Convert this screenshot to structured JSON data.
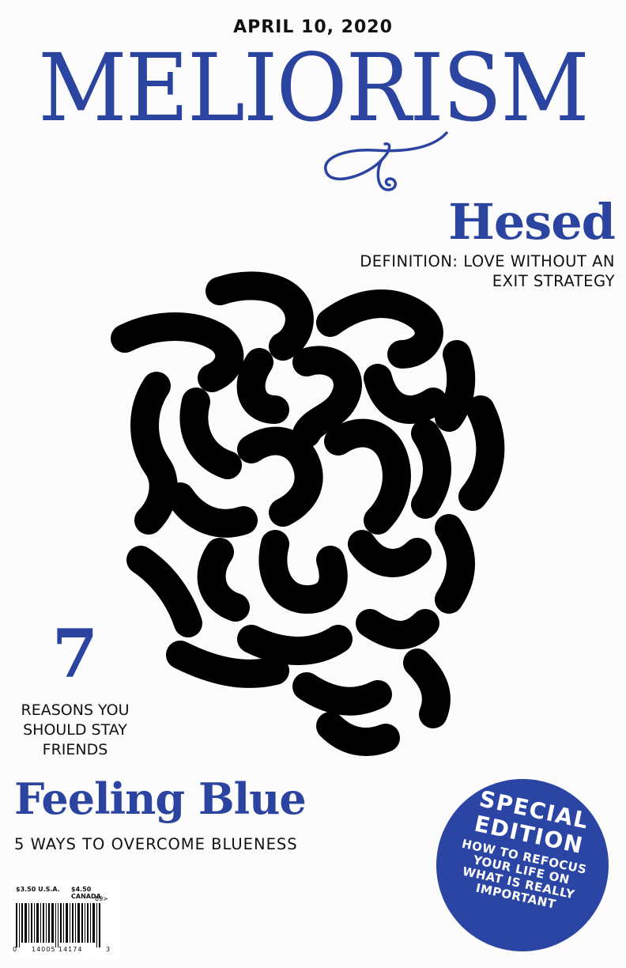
{
  "cover": {
    "date": "APRIL 10, 2020",
    "masthead": "MELIORISM"
  },
  "hesed": {
    "title": "Hesed",
    "definition_line1": "DEFINITION: LOVE WITHOUT AN",
    "definition_line2": "EXIT STRATEGY"
  },
  "reasons": {
    "number": "7",
    "line1": "REASONS YOU",
    "line2": "SHOULD STAY",
    "line3": "FRIENDS"
  },
  "feeling_blue": {
    "title": "Feeling Blue",
    "subtitle": "5 WAYS TO OVERCOME BLUENESS"
  },
  "barcode": {
    "price_usa": "$3.50 U.S.A.",
    "price_canada": "$4.50 CANADA",
    "issue_code": "09>",
    "digits_left": "0",
    "digits_middle": "14005 14174",
    "digits_right": "3"
  },
  "badge": {
    "line1": "SPECIAL",
    "line2": "EDITION",
    "sub1": "HOW TO REFOCUS",
    "sub2": "YOUR LIFE ON",
    "sub3": "WHAT IS REALLY",
    "sub4": "IMPORTANT"
  },
  "colors": {
    "brand_blue": "#2b44a0",
    "ink": "#111111",
    "paper": "#fcfcfc"
  }
}
